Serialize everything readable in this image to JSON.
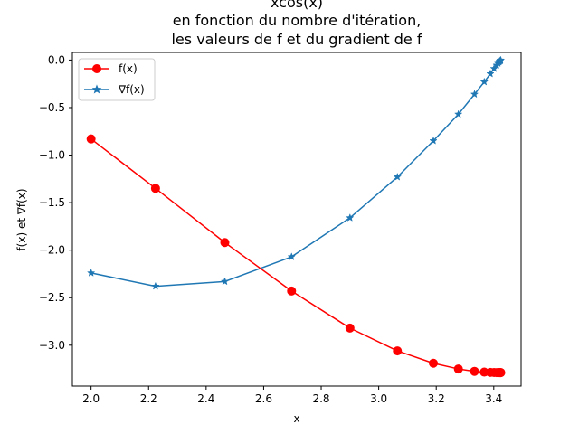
{
  "chart_data": {
    "type": "line",
    "title_lines": [
      "xcos(x)",
      "en fonction du nombre d'itération,",
      "les valeurs de f et du gradient de f"
    ],
    "xlabel": "x",
    "ylabel": "f(x) et ∇f(x)",
    "xlim": [
      1.935,
      3.495
    ],
    "ylim": [
      -3.43,
      0.08
    ],
    "xticks": [
      2.0,
      2.2,
      2.4,
      2.6,
      2.8,
      3.0,
      3.2,
      3.4
    ],
    "xtick_labels": [
      "2.0",
      "2.2",
      "2.4",
      "2.6",
      "2.8",
      "3.0",
      "3.2",
      "3.4"
    ],
    "yticks": [
      0.0,
      -0.5,
      -1.0,
      -1.5,
      -2.0,
      -2.5,
      -3.0
    ],
    "ytick_labels": [
      "0.0",
      "−0.5",
      "−1.0",
      "−1.5",
      "−2.0",
      "−2.5",
      "−3.0"
    ],
    "legend_position": "upper-left",
    "grid": false,
    "x": [
      2.0,
      2.224,
      2.465,
      2.697,
      2.9,
      3.065,
      3.19,
      3.277,
      3.333,
      3.367,
      3.388,
      3.401,
      3.41,
      3.415,
      3.418,
      3.42,
      3.422,
      3.423,
      3.424,
      3.424
    ],
    "series": [
      {
        "name": "f(x)",
        "color": "#ff0000",
        "marker": "circle",
        "values": [
          -0.83,
          -1.35,
          -1.92,
          -2.43,
          -2.82,
          -3.06,
          -3.19,
          -3.25,
          -3.275,
          -3.283,
          -3.286,
          -3.287,
          -3.288,
          -3.288,
          -3.288,
          -3.288,
          -3.288,
          -3.288,
          -3.288,
          -3.288
        ]
      },
      {
        "name": "∇f(x)",
        "color": "#1f77b4",
        "marker": "star",
        "values": [
          -2.24,
          -2.38,
          -2.33,
          -2.07,
          -1.66,
          -1.23,
          -0.85,
          -0.57,
          -0.36,
          -0.23,
          -0.145,
          -0.09,
          -0.055,
          -0.035,
          -0.022,
          -0.014,
          -0.009,
          -0.005,
          -0.003,
          -0.001
        ]
      }
    ]
  }
}
